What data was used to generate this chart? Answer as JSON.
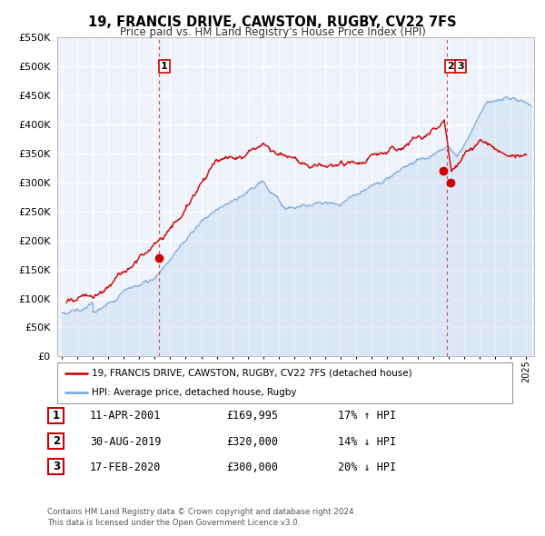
{
  "title": "19, FRANCIS DRIVE, CAWSTON, RUGBY, CV22 7FS",
  "subtitle": "Price paid vs. HM Land Registry's House Price Index (HPI)",
  "legend_label_red": "19, FRANCIS DRIVE, CAWSTON, RUGBY, CV22 7FS (detached house)",
  "legend_label_blue": "HPI: Average price, detached house, Rugby",
  "footer1": "Contains HM Land Registry data © Crown copyright and database right 2024.",
  "footer2": "This data is licensed under the Open Government Licence v3.0.",
  "sales": [
    {
      "num": 1,
      "date": "11-APR-2001",
      "price": "£169,995",
      "change": "17% ↑ HPI",
      "x_year": 2001.27
    },
    {
      "num": 2,
      "date": "30-AUG-2019",
      "price": "£320,000",
      "change": "14% ↓ HPI",
      "x_year": 2019.66
    },
    {
      "num": 3,
      "date": "17-FEB-2020",
      "price": "£300,000",
      "change": "20% ↓ HPI",
      "x_year": 2020.13
    }
  ],
  "sale_marker_color": "#cc0000",
  "vline_color": "#dd3333",
  "red_line_color": "#cc1111",
  "blue_line_color": "#7aaadd",
  "blue_fill_color": "#ccddf0",
  "ylim": [
    0,
    550000
  ],
  "yticks": [
    0,
    50000,
    100000,
    150000,
    200000,
    250000,
    300000,
    350000,
    400000,
    450000,
    500000,
    550000
  ],
  "ytick_labels": [
    "£0",
    "£50K",
    "£100K",
    "£150K",
    "£200K",
    "£250K",
    "£300K",
    "£350K",
    "£400K",
    "£450K",
    "£500K",
    "£550K"
  ],
  "xlim_start": 1994.7,
  "xlim_end": 2025.5,
  "bg_color": "#eef2fb",
  "grid_color": "#ffffff",
  "sale_point_values": [
    169995,
    320000,
    300000
  ],
  "sale_point_years": [
    2001.27,
    2019.66,
    2020.13
  ],
  "vline_x1": 2001.27,
  "vline_x2": 2019.85
}
